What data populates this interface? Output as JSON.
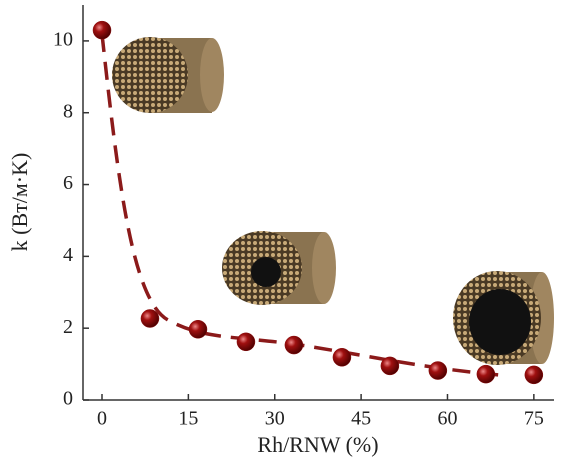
{
  "chart_data": {
    "type": "scatter",
    "x_label": "Rh/RNW (%)",
    "y_label": "k (Вт/м·K)",
    "x": [
      0,
      8.33,
      16.67,
      25,
      33.33,
      41.67,
      50,
      58.33,
      66.67,
      75
    ],
    "series": [
      {
        "color": "#8b0a0a",
        "values": [
          10.3,
          2.27,
          1.97,
          1.62,
          1.53,
          1.19,
          0.95,
          0.82,
          0.72,
          0.7
        ]
      }
    ],
    "xlim": [
      -3.3,
      78.5
    ],
    "ylim": [
      0,
      11
    ],
    "xticks": [
      0,
      15,
      30,
      45,
      60,
      75
    ],
    "yticks": [
      0,
      2,
      4,
      6,
      8,
      10
    ]
  }
}
